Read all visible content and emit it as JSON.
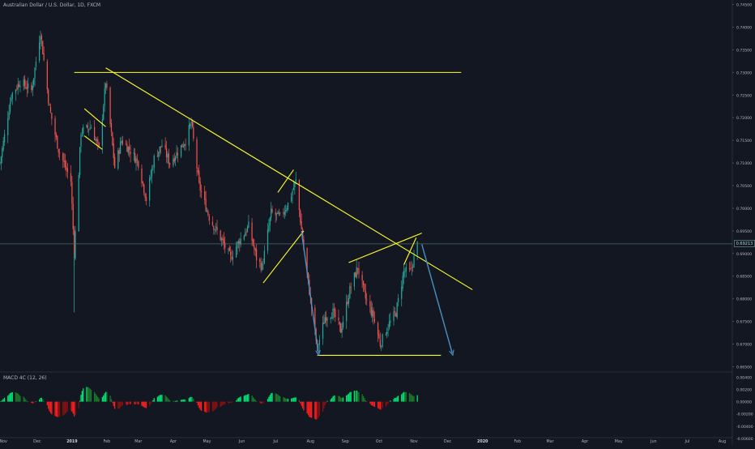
{
  "header": {
    "title": "Australian Dollar / U.S. Dollar, 1D, FXCM"
  },
  "chart_data": [
    {
      "type": "candlestick",
      "title": "Australian Dollar / U.S. Dollar, 1D, FXCM",
      "ylim": [
        0.664,
        0.746
      ],
      "y_ticks": [
        "0.74500",
        "0.74000",
        "0.73500",
        "0.73000",
        "0.72500",
        "0.72000",
        "0.71500",
        "0.71000",
        "0.70500",
        "0.70000",
        "0.69500",
        "0.69000",
        "0.68500",
        "0.68000",
        "0.67500",
        "0.67000",
        "0.66500"
      ],
      "x_ticks": [
        "Nov",
        "Dec",
        "2019",
        "Feb",
        "Mar",
        "Apr",
        "May",
        "Jun",
        "Jul",
        "Aug",
        "Sep",
        "Oct",
        "Nov",
        "Dec",
        "2020",
        "Feb",
        "Mar",
        "Apr",
        "May",
        "Jun",
        "Jul",
        "Aug"
      ],
      "last_price": "0.69213",
      "x_range": [
        "2018-10-29",
        "2020-08-10"
      ],
      "price_path": [
        [
          "2018-10-29",
          0.71
        ],
        [
          "2018-11-08",
          0.725
        ],
        [
          "2018-11-16",
          0.728
        ],
        [
          "2018-11-26",
          0.726
        ],
        [
          "2018-12-04",
          0.739
        ],
        [
          "2018-12-12",
          0.722
        ],
        [
          "2018-12-20",
          0.713
        ],
        [
          "2018-12-31",
          0.706
        ],
        [
          "2019-01-03",
          0.69
        ],
        [
          "2019-01-09",
          0.717
        ],
        [
          "2019-01-18",
          0.718
        ],
        [
          "2019-01-25",
          0.713
        ],
        [
          "2019-01-31",
          0.728
        ],
        [
          "2019-02-08",
          0.709
        ],
        [
          "2019-02-14",
          0.715
        ],
        [
          "2019-02-21",
          0.713
        ],
        [
          "2019-03-01",
          0.71
        ],
        [
          "2019-03-08",
          0.702
        ],
        [
          "2019-03-15",
          0.711
        ],
        [
          "2019-03-22",
          0.714
        ],
        [
          "2019-03-29",
          0.71
        ],
        [
          "2019-04-12",
          0.715
        ],
        [
          "2019-04-17",
          0.719
        ],
        [
          "2019-04-24",
          0.705
        ],
        [
          "2019-05-03",
          0.698
        ],
        [
          "2019-05-14",
          0.693
        ],
        [
          "2019-05-22",
          0.689
        ],
        [
          "2019-05-28",
          0.692
        ],
        [
          "2019-06-07",
          0.696
        ],
        [
          "2019-06-14",
          0.689
        ],
        [
          "2019-06-19",
          0.687
        ],
        [
          "2019-06-27",
          0.699
        ],
        [
          "2019-07-05",
          0.698
        ],
        [
          "2019-07-12",
          0.701
        ],
        [
          "2019-07-19",
          0.706
        ],
        [
          "2019-07-26",
          0.691
        ],
        [
          "2019-08-02",
          0.678
        ],
        [
          "2019-08-07",
          0.669
        ],
        [
          "2019-08-14",
          0.676
        ],
        [
          "2019-08-21",
          0.677
        ],
        [
          "2019-08-28",
          0.673
        ],
        [
          "2019-09-05",
          0.682
        ],
        [
          "2019-09-12",
          0.687
        ],
        [
          "2019-09-19",
          0.68
        ],
        [
          "2019-09-26",
          0.676
        ],
        [
          "2019-10-02",
          0.67
        ],
        [
          "2019-10-09",
          0.674
        ],
        [
          "2019-10-16",
          0.677
        ],
        [
          "2019-10-23",
          0.686
        ],
        [
          "2019-10-29",
          0.686
        ],
        [
          "2019-11-04",
          0.692
        ]
      ],
      "annotations": [
        {
          "kind": "horizontal_line",
          "label": "resistance",
          "from": "2019-01-03",
          "to": "2019-12-13",
          "y": 0.73
        },
        {
          "kind": "trendline",
          "from": [
            "2019-01-31",
            0.731
          ],
          "to": [
            "2019-12-23",
            0.682
          ]
        },
        {
          "kind": "trendline",
          "from": [
            "2019-01-12",
            0.722
          ],
          "to": [
            "2019-01-31",
            0.718
          ]
        },
        {
          "kind": "trendline",
          "from": [
            "2019-01-12",
            0.716
          ],
          "to": [
            "2019-01-28",
            0.713
          ]
        },
        {
          "kind": "trendline",
          "from": [
            "2019-06-20",
            0.6835
          ],
          "to": [
            "2019-07-26",
            0.695
          ]
        },
        {
          "kind": "trendline",
          "from": [
            "2019-07-03",
            0.7035
          ],
          "to": [
            "2019-07-17",
            0.7085
          ]
        },
        {
          "kind": "trendline",
          "from": [
            "2019-09-04",
            0.688
          ],
          "to": [
            "2019-11-08",
            0.6945
          ]
        },
        {
          "kind": "trendline",
          "from": [
            "2019-10-23",
            0.6875
          ],
          "to": [
            "2019-11-03",
            0.6935
          ]
        },
        {
          "kind": "horizontal_line",
          "label": "support",
          "from": "2019-08-07",
          "to": "2019-11-25",
          "y": 0.6675
        },
        {
          "kind": "projection_arrow",
          "from": [
            "2019-07-24",
            0.695
          ],
          "to": [
            "2019-08-08",
            0.668
          ]
        },
        {
          "kind": "projection_arrow",
          "from": [
            "2019-11-08",
            0.692
          ],
          "to": [
            "2019-12-05",
            0.668
          ]
        }
      ]
    },
    {
      "type": "histogram",
      "title": "MACD 4C (12, 26)",
      "ylim": [
        -0.0056,
        0.0047
      ],
      "y_ticks": [
        "0.00400",
        "0.00200",
        "0.00000",
        "-0.00200",
        "-0.00400",
        "-0.00600"
      ],
      "colors": {
        "rising_positive": "#00e676",
        "falling_positive": "#1b7a2a",
        "falling_negative": "#ff1f1f",
        "rising_negative": "#8a1010"
      }
    }
  ],
  "colors": {
    "background": "#131722",
    "up": "#26a69a",
    "down": "#ef5350",
    "drawing": "#ffff26",
    "projection": "#4a90c2",
    "last_price_line": "#4f6a6a"
  }
}
